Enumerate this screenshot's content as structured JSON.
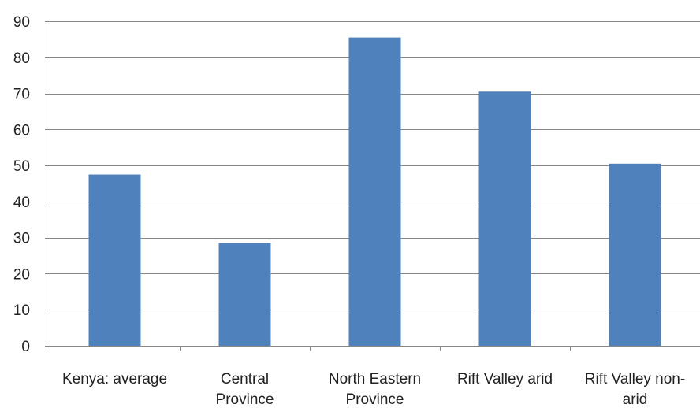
{
  "chart_data": {
    "type": "bar",
    "categories": [
      "Kenya: average",
      "Central Province",
      "North Eastern Province",
      "Rift Valley arid",
      "Rift Valley non-arid"
    ],
    "category_label_lines": [
      [
        "Kenya: average"
      ],
      [
        "Central",
        "Province"
      ],
      [
        "North Eastern",
        "Province"
      ],
      [
        "Rift Valley arid"
      ],
      [
        "Rift Valley non-",
        "arid"
      ]
    ],
    "values": [
      47.5,
      28.5,
      85.5,
      70.5,
      50.5
    ],
    "ylim": [
      0,
      90
    ],
    "yticks": [
      0,
      10,
      20,
      30,
      40,
      50,
      60,
      70,
      80,
      90
    ],
    "grid": true,
    "legend": "none",
    "bar_color": "#4F81BD",
    "grid_color": "#878787",
    "axis_color": "#878787"
  }
}
